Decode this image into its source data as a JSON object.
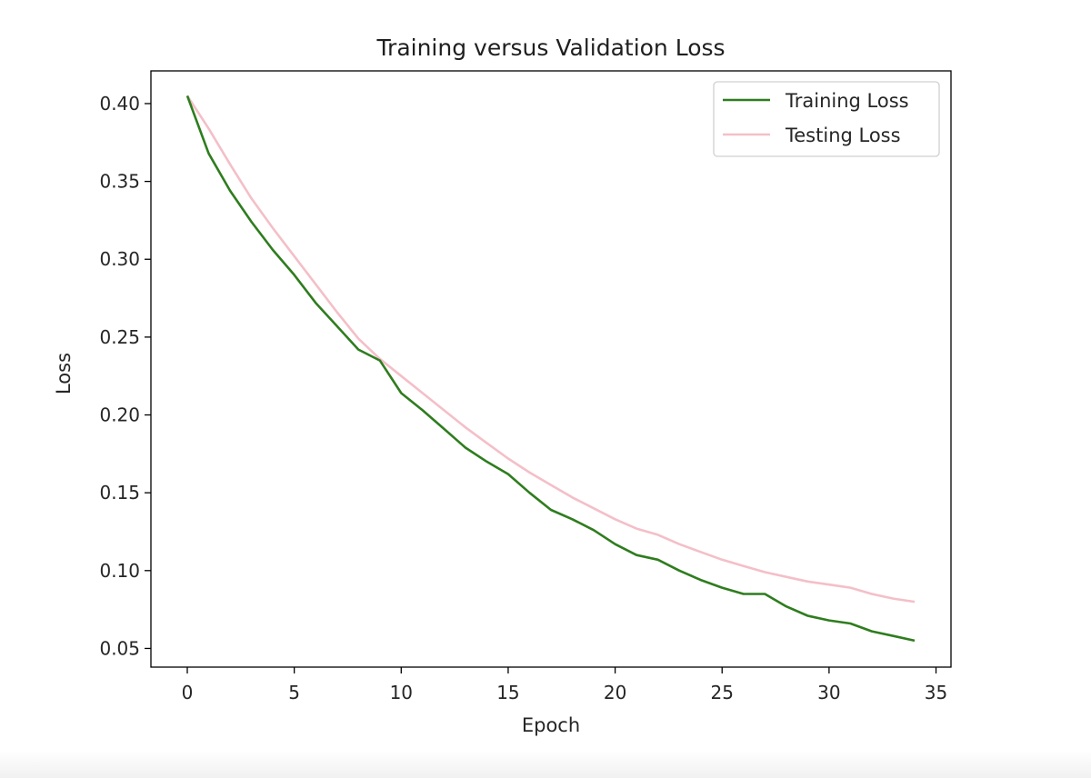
{
  "chart_data": {
    "type": "line",
    "title": "Training versus Validation Loss",
    "xlabel": "Epoch",
    "ylabel": "Loss",
    "xlim": [
      -1.7,
      35.7
    ],
    "ylim": [
      0.038,
      0.421
    ],
    "xticks": [
      0,
      5,
      10,
      15,
      20,
      25,
      30,
      35
    ],
    "xtick_labels": [
      "0",
      "5",
      "10",
      "15",
      "20",
      "25",
      "30",
      "35"
    ],
    "yticks": [
      0.05,
      0.1,
      0.15,
      0.2,
      0.25,
      0.3,
      0.35,
      0.4
    ],
    "ytick_labels": [
      "0.05",
      "0.10",
      "0.15",
      "0.20",
      "0.25",
      "0.30",
      "0.35",
      "0.40"
    ],
    "grid": false,
    "legend_position": "top-right",
    "x": [
      0,
      1,
      2,
      3,
      4,
      5,
      6,
      7,
      8,
      9,
      10,
      11,
      12,
      13,
      14,
      15,
      16,
      17,
      18,
      19,
      20,
      21,
      22,
      23,
      24,
      25,
      26,
      27,
      28,
      29,
      30,
      31,
      32,
      33,
      34
    ],
    "series": [
      {
        "name": "Training Loss",
        "color": "#2e7d1e",
        "values": [
          0.405,
          0.368,
          0.344,
          0.324,
          0.306,
          0.29,
          0.272,
          0.257,
          0.242,
          0.235,
          0.214,
          0.203,
          0.191,
          0.179,
          0.17,
          0.162,
          0.15,
          0.139,
          0.133,
          0.126,
          0.117,
          0.11,
          0.107,
          0.1,
          0.094,
          0.089,
          0.085,
          0.085,
          0.077,
          0.071,
          0.068,
          0.066,
          0.061,
          0.058,
          0.055
        ]
      },
      {
        "name": "Testing Loss",
        "color": "#f4bfc8",
        "values": [
          0.405,
          0.384,
          0.361,
          0.339,
          0.32,
          0.302,
          0.284,
          0.266,
          0.249,
          0.236,
          0.225,
          0.214,
          0.203,
          0.192,
          0.182,
          0.172,
          0.163,
          0.155,
          0.147,
          0.14,
          0.133,
          0.127,
          0.123,
          0.117,
          0.112,
          0.107,
          0.103,
          0.099,
          0.096,
          0.093,
          0.091,
          0.089,
          0.085,
          0.082,
          0.08
        ]
      }
    ]
  }
}
